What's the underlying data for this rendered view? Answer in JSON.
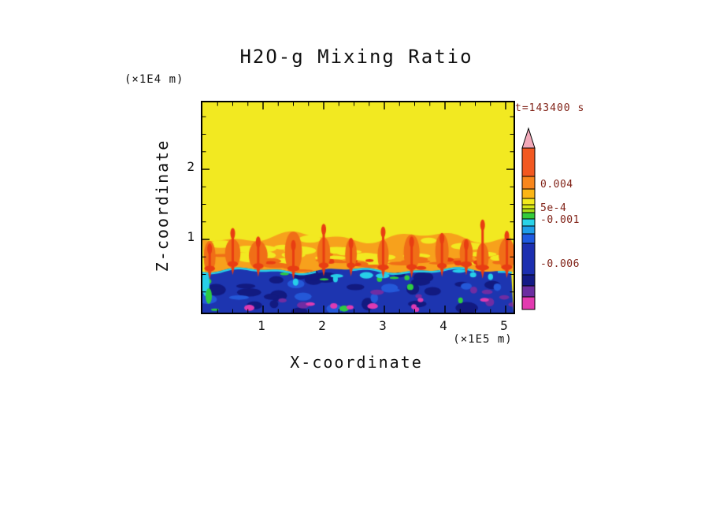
{
  "page": {
    "background": "#ffffff"
  },
  "chart_data": {
    "type": "heatmap",
    "title": "H2O-g Mixing Ratio",
    "time_label": "t=143400 s",
    "annotation_color": "#7f1f14",
    "x_axis": {
      "label": "X-coordinate",
      "unit": "(×1E5 m)",
      "ticks": [
        1,
        2,
        3,
        4,
        5
      ],
      "range": [
        0,
        5.13
      ],
      "minor_tick_interval": 0.25
    },
    "z_axis": {
      "label": "Z-coordinate",
      "unit": "(×1E4 m)",
      "ticks": [
        1,
        2
      ],
      "range": [
        0,
        2.96
      ],
      "minor_tick_interval": 0.25
    },
    "colorbar": {
      "arrow_color": "#f2a9b9",
      "segments": [
        {
          "color": "#f25821",
          "h": 36
        },
        {
          "color": "#f8861c",
          "h": 16
        },
        {
          "color": "#fbb514",
          "h": 12
        },
        {
          "color": "#f2ea1e",
          "h": 8
        },
        {
          "color": "#d6e816",
          "h": 5
        },
        {
          "color": "#aade18",
          "h": 5
        },
        {
          "color": "#33cc3a",
          "h": 8
        },
        {
          "color": "#29d3e8",
          "h": 9
        },
        {
          "color": "#1e9de8",
          "h": 10
        },
        {
          "color": "#1e5ae0",
          "h": 12
        },
        {
          "color": "#1c2fb0",
          "h": 40
        },
        {
          "color": "#141b86",
          "h": 14
        },
        {
          "color": "#6b2da0",
          "h": 14
        },
        {
          "color": "#e23ab0",
          "h": 16
        }
      ],
      "labels": [
        {
          "text": "0.004",
          "offset": 74
        },
        {
          "text": "5e-4",
          "offset": 104
        },
        {
          "text": "-0.001",
          "offset": 119
        },
        {
          "text": "-0.006",
          "offset": 175
        }
      ]
    },
    "field": {
      "seed": 1337,
      "interface_z": 0.56,
      "band_top_z": 1.03,
      "plumes": [
        {
          "x": 0.12,
          "h": 0.92
        },
        {
          "x": 0.5,
          "h": 1.14
        },
        {
          "x": 0.92,
          "h": 1.02
        },
        {
          "x": 1.5,
          "h": 0.97
        },
        {
          "x": 2.0,
          "h": 1.2
        },
        {
          "x": 2.45,
          "h": 1.0
        },
        {
          "x": 2.98,
          "h": 1.16
        },
        {
          "x": 3.45,
          "h": 1.02
        },
        {
          "x": 3.95,
          "h": 1.07
        },
        {
          "x": 4.35,
          "h": 0.98
        },
        {
          "x": 4.62,
          "h": 1.26
        },
        {
          "x": 5.02,
          "h": 1.1
        }
      ],
      "palette": {
        "yellow": "#f2e921",
        "band_orange": "#f7a11c",
        "orange_deep": "#f06e17",
        "red": "#e83d12",
        "navy": "#1d35b0",
        "navy_dark": "#121a80",
        "blue_mid": "#2458d8",
        "cyan": "#27cfe8",
        "green": "#2ecc41",
        "purple": "#6f2da3",
        "magenta": "#de3bb2"
      }
    }
  }
}
